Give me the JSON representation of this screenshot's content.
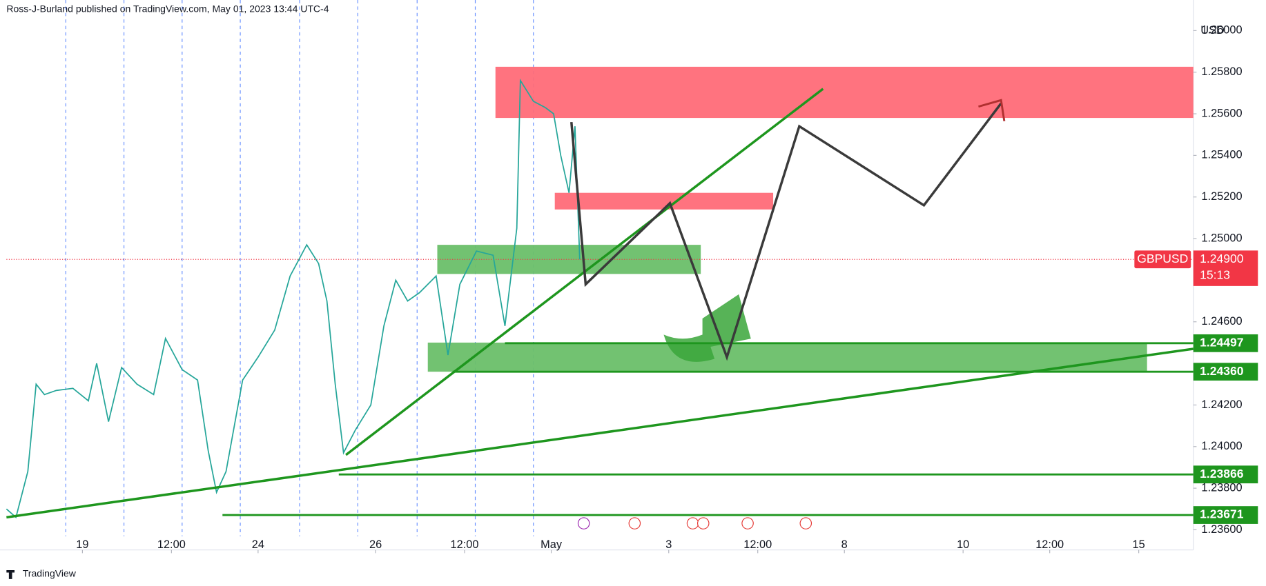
{
  "header": {
    "text": "Ross-J-Burland published on TradingView.com, May 01, 2023 13:44 UTC-4"
  },
  "footer": {
    "brand": "TradingView"
  },
  "chart_data": {
    "type": "line",
    "currency": "USD",
    "symbol": "GBPUSD",
    "last_price": {
      "value": 1.249,
      "label": "1.24900"
    },
    "countdown": "15:13",
    "xlim": [
      0,
      100
    ],
    "ylim": [
      1.23569,
      1.26147
    ],
    "xticks": [
      {
        "value": 6.4,
        "label": "19"
      },
      {
        "value": 13.9,
        "label": "12:00"
      },
      {
        "value": 21.2,
        "label": "24"
      },
      {
        "value": 31.1,
        "label": "26"
      },
      {
        "value": 38.6,
        "label": "12:00"
      },
      {
        "value": 45.9,
        "label": "May"
      },
      {
        "value": 55.8,
        "label": "3"
      },
      {
        "value": 63.3,
        "label": "12:00"
      },
      {
        "value": 70.6,
        "label": "8"
      },
      {
        "value": 80.6,
        "label": "10"
      },
      {
        "value": 87.9,
        "label": "12:00"
      },
      {
        "value": 95.4,
        "label": "15"
      }
    ],
    "yticks": [
      {
        "value": 1.26,
        "label": "1.26000"
      },
      {
        "value": 1.258,
        "label": "1.25800"
      },
      {
        "value": 1.256,
        "label": "1.25600"
      },
      {
        "value": 1.254,
        "label": "1.25400"
      },
      {
        "value": 1.252,
        "label": "1.25200"
      },
      {
        "value": 1.25,
        "label": "1.25000"
      },
      {
        "value": 1.246,
        "label": "1.24600"
      },
      {
        "value": 1.242,
        "label": "1.24200"
      },
      {
        "value": 1.24,
        "label": "1.24000"
      },
      {
        "value": 1.238,
        "label": "1.23800"
      },
      {
        "value": 1.236,
        "label": "1.23600"
      }
    ],
    "session_lines": [
      5,
      9.9,
      14.8,
      19.7,
      24.7,
      29.6,
      34.6,
      39.5,
      44.4
    ],
    "series": [
      {
        "name": "GBPUSD",
        "color": "#26a69a",
        "x": [
          0,
          0.8,
          1.8,
          2.5,
          3.2,
          4.2,
          5.6,
          6.9,
          7.6,
          8.6,
          9.7,
          11,
          12.4,
          13.4,
          14.8,
          16.1,
          17,
          17.7,
          18.5,
          19.9,
          21.2,
          22.6,
          23.9,
          25.3,
          26.3,
          27,
          27.7,
          28.4,
          29.4,
          30.7,
          31.8,
          32.8,
          33.8,
          34.8,
          36.2,
          37.2,
          38.2,
          39.6,
          41,
          42,
          43,
          43.3,
          44.4,
          45.4,
          46.1,
          46.7,
          47.4,
          47.9,
          48.3
        ],
        "values": [
          1.237,
          1.2366,
          1.2388,
          1.243,
          1.2425,
          1.2427,
          1.2428,
          1.2422,
          1.244,
          1.2412,
          1.2438,
          1.243,
          1.2425,
          1.2452,
          1.2437,
          1.2432,
          1.2398,
          1.2378,
          1.2388,
          1.2432,
          1.2443,
          1.2456,
          1.2482,
          1.2497,
          1.2488,
          1.247,
          1.243,
          1.2397,
          1.2408,
          1.242,
          1.2458,
          1.248,
          1.247,
          1.2474,
          1.2482,
          1.2444,
          1.2478,
          1.2494,
          1.2492,
          1.2458,
          1.2505,
          1.2576,
          1.2566,
          1.2563,
          1.256,
          1.254,
          1.2522,
          1.2554,
          1.249
        ]
      }
    ],
    "zones": [
      {
        "color": "#ff6b78",
        "x": [
          41.2,
          100
        ],
        "y": [
          1.2558,
          1.25826
        ]
      },
      {
        "color": "#ff6b78",
        "x": [
          46.2,
          64.6
        ],
        "y": [
          1.2514,
          1.2522
        ]
      },
      {
        "color": "#6abf69",
        "x": [
          36.3,
          58.5
        ],
        "y": [
          1.2483,
          1.2497
        ]
      },
      {
        "color": "#6abf69",
        "x": [
          35.5,
          96.1
        ],
        "y": [
          1.2436,
          1.245
        ]
      }
    ],
    "trendlines": [
      {
        "color": "#1e961e",
        "x": [
          28.6,
          68.8
        ],
        "y": [
          1.2396,
          1.2572
        ]
      },
      {
        "color": "#1e961e",
        "x": [
          0,
          100
        ],
        "y": [
          1.2366,
          1.2447
        ]
      }
    ],
    "levels": [
      {
        "color": "#1e961e",
        "start": 42,
        "price": 1.24497
      },
      {
        "color": "#1e961e",
        "start": 37.6,
        "price": {
          "value": 1.2436,
          "label": "1.24360"
        }
      },
      {
        "color": "#1e961e",
        "start": 28,
        "price": 1.23866
      },
      {
        "color": "#1e961e",
        "start": 18.2,
        "price": 1.23671
      }
    ],
    "projection": {
      "color": "#3a3a3a",
      "x": [
        47.6,
        48.8,
        55.9,
        60.7,
        66.8,
        77.3,
        83.8
      ],
      "y": [
        1.2556,
        1.2478,
        1.2517,
        1.2443,
        1.2554,
        1.2516,
        1.2565
      ]
    }
  }
}
